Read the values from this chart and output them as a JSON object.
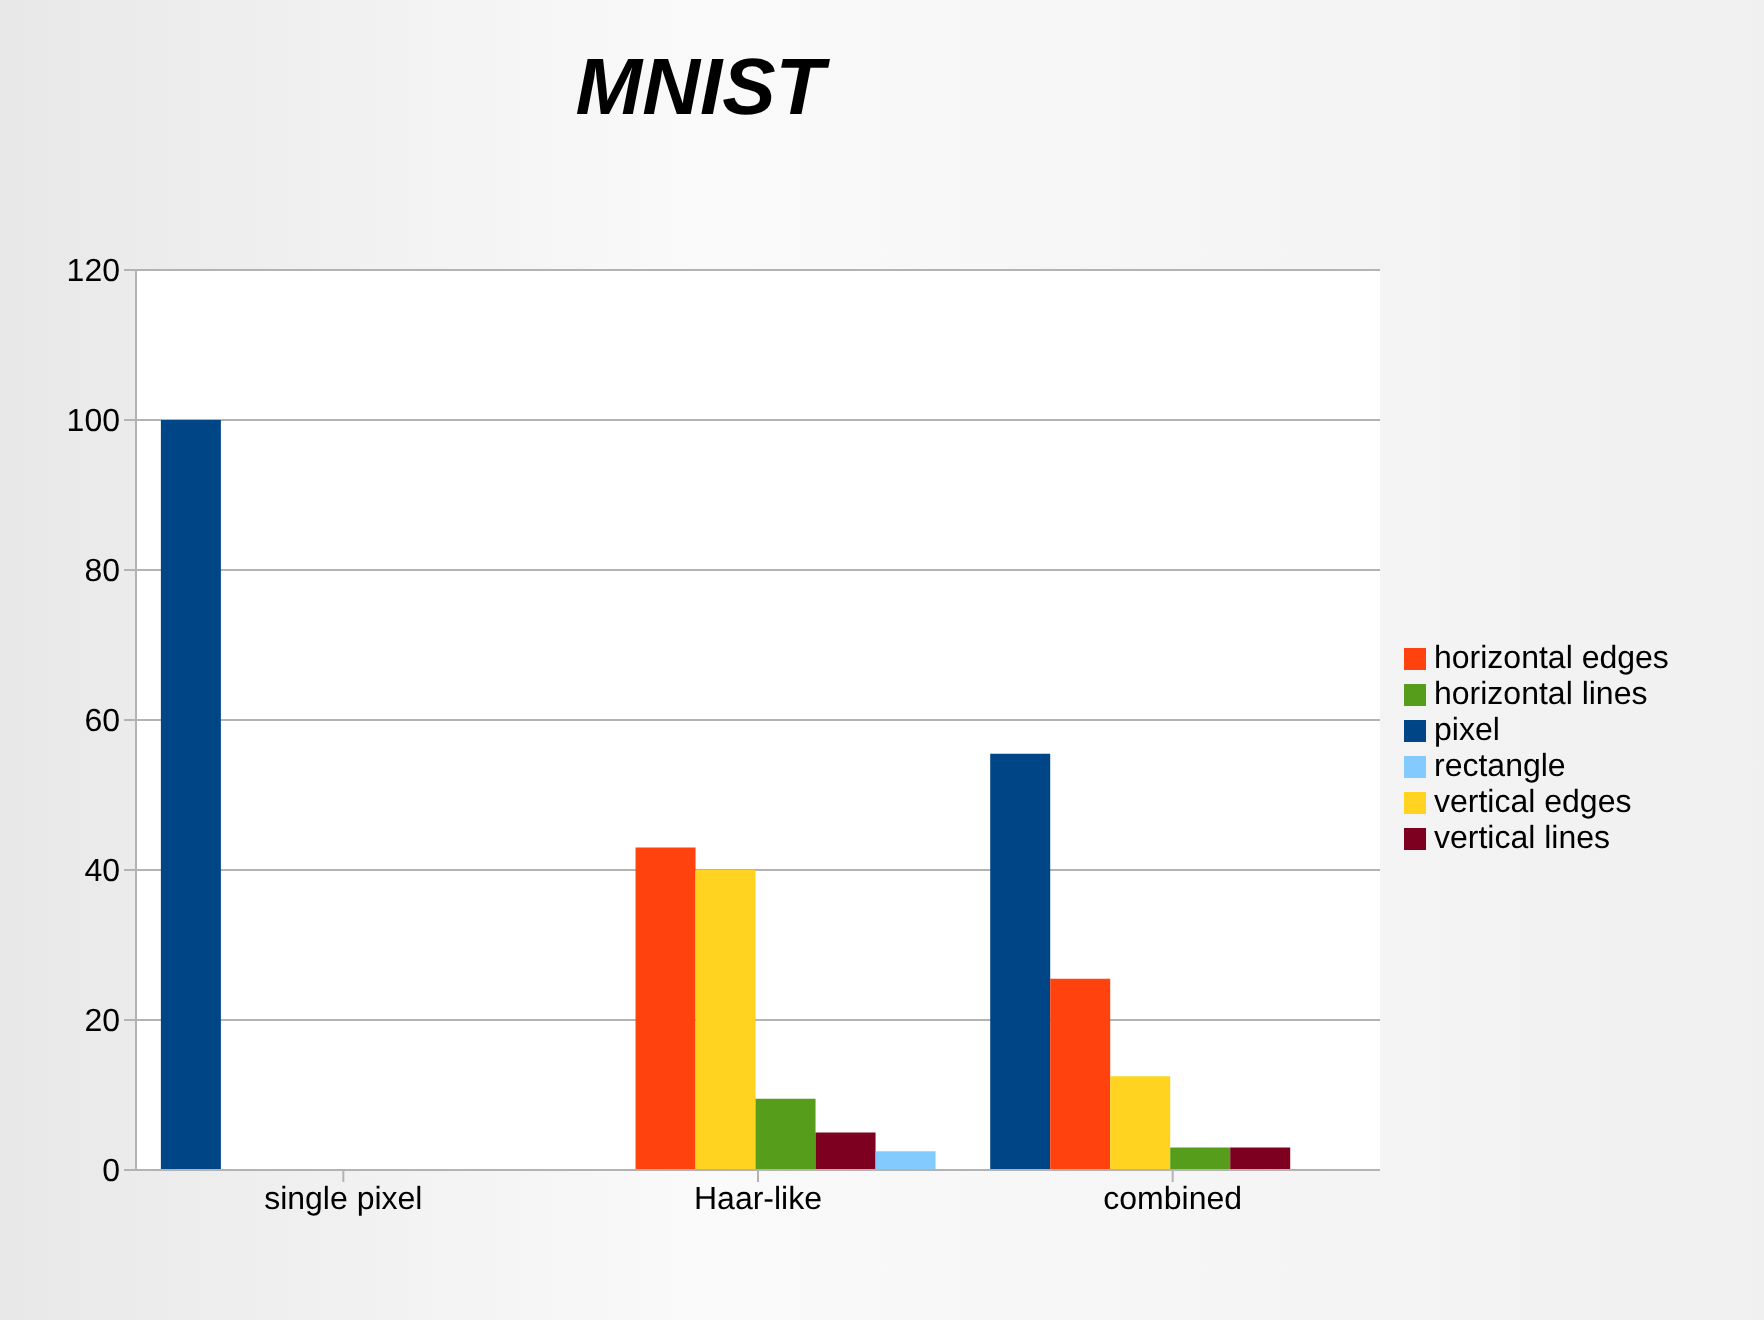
{
  "chart_data": {
    "type": "bar",
    "title": "MNIST",
    "categories": [
      "single pixel",
      "Haar-like",
      "combined"
    ],
    "series": [
      {
        "name": "pixel",
        "color": "#004586",
        "values": [
          100,
          0,
          55.5
        ]
      },
      {
        "name": "horizontal edges",
        "color": "#ff420e",
        "values": [
          0,
          43,
          25.5
        ]
      },
      {
        "name": "vertical edges",
        "color": "#ffd320",
        "values": [
          0,
          40,
          12.5
        ]
      },
      {
        "name": "horizontal lines",
        "color": "#579d1c",
        "values": [
          0,
          9.5,
          3
        ]
      },
      {
        "name": "vertical lines",
        "color": "#7e0021",
        "values": [
          0,
          5,
          3
        ]
      },
      {
        "name": "rectangle",
        "color": "#83caff",
        "values": [
          0,
          2.5,
          0
        ]
      }
    ],
    "ylim": [
      0,
      120
    ],
    "yticks": [
      0,
      20,
      40,
      60,
      80,
      100,
      120
    ],
    "grid": "y",
    "legend": "right"
  }
}
